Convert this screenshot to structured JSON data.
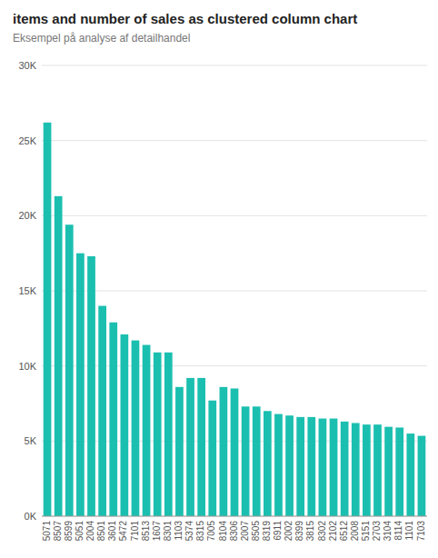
{
  "chart_data": {
    "type": "bar",
    "title": "items and number of sales as clustered column chart",
    "subtitle": "Eksempel på analyse af detailhandel",
    "categories": [
      "5071",
      "8507",
      "8599",
      "5051",
      "2004",
      "8501",
      "3601",
      "5472",
      "7101",
      "8513",
      "1607",
      "8301",
      "1103",
      "5374",
      "8315",
      "7005",
      "8104",
      "8306",
      "2007",
      "8505",
      "8319",
      "6911",
      "2002",
      "8399",
      "3815",
      "8302",
      "2102",
      "6512",
      "2008",
      "5151",
      "2703",
      "3104",
      "8114",
      "1101",
      "7103"
    ],
    "values": [
      26200,
      21300,
      19400,
      17500,
      17300,
      14000,
      12900,
      12100,
      11700,
      11400,
      10900,
      10900,
      8600,
      9200,
      9200,
      7700,
      8600,
      8500,
      7300,
      7300,
      7000,
      6800,
      6700,
      6600,
      6600,
      6500,
      6500,
      6300,
      6200,
      6100,
      6100,
      5950,
      5900,
      5500,
      5350
    ],
    "color": "#1BBFB0",
    "ylim": [
      0,
      30000
    ],
    "yticks": [
      {
        "value": 0,
        "label": "0K"
      },
      {
        "value": 5000,
        "label": "5K"
      },
      {
        "value": 10000,
        "label": "10K"
      },
      {
        "value": 15000,
        "label": "15K"
      },
      {
        "value": 20000,
        "label": "20K"
      },
      {
        "value": 25000,
        "label": "25K"
      },
      {
        "value": 30000,
        "label": "30K"
      }
    ],
    "grid": true
  }
}
